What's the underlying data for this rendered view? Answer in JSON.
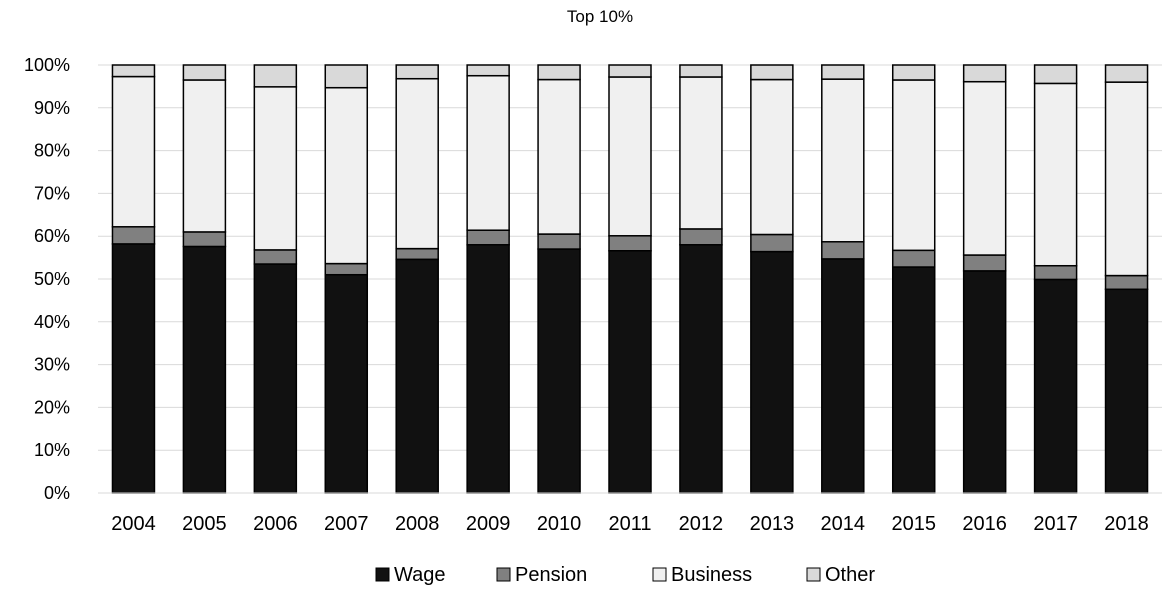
{
  "chart_data": {
    "type": "bar",
    "stacked": true,
    "title": "Top 10%",
    "xlabel": "",
    "ylabel": "",
    "categories": [
      "2004",
      "2005",
      "2006",
      "2007",
      "2008",
      "2009",
      "2010",
      "2011",
      "2012",
      "2013",
      "2014",
      "2015",
      "2016",
      "2017",
      "2018"
    ],
    "ylim": [
      0,
      100
    ],
    "yticks": [
      0,
      10,
      20,
      30,
      40,
      50,
      60,
      70,
      80,
      90,
      100
    ],
    "ytick_labels": [
      "0%",
      "10%",
      "20%",
      "30%",
      "40%",
      "50%",
      "60%",
      "70%",
      "80%",
      "90%",
      "100%"
    ],
    "grid": true,
    "legend_position": "bottom",
    "series": [
      {
        "name": "Wage",
        "color": "#111111",
        "values": [
          58.2,
          57.6,
          53.5,
          51.0,
          54.6,
          58.0,
          57.0,
          56.6,
          58.0,
          56.4,
          54.7,
          52.8,
          51.9,
          49.9,
          47.6
        ]
      },
      {
        "name": "Pension",
        "color": "#808080",
        "values": [
          4.0,
          3.4,
          3.3,
          2.6,
          2.5,
          3.4,
          3.5,
          3.5,
          3.7,
          4.0,
          4.0,
          3.9,
          3.7,
          3.2,
          3.2
        ]
      },
      {
        "name": "Business",
        "color": "#f0f0f0",
        "values": [
          35.1,
          35.5,
          38.1,
          41.1,
          39.7,
          36.1,
          36.1,
          37.1,
          35.5,
          36.2,
          38.0,
          39.8,
          40.5,
          42.6,
          45.2
        ]
      },
      {
        "name": "Other",
        "color": "#d9d9d9",
        "values": [
          2.7,
          3.5,
          5.1,
          5.3,
          3.2,
          2.5,
          3.4,
          2.8,
          2.8,
          3.4,
          3.3,
          3.5,
          3.9,
          4.3,
          4.0
        ]
      }
    ]
  }
}
